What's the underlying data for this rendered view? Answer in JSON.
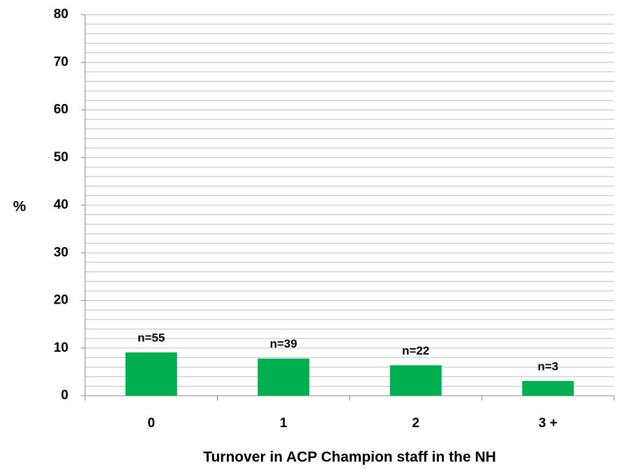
{
  "chart_data": {
    "type": "bar",
    "x_label": "Turnover in ACP Champion staff in the NH",
    "y_label": "%",
    "categories": [
      "0",
      "1",
      "2",
      "3 +"
    ],
    "values": [
      9.1,
      7.8,
      6.4,
      3.1
    ],
    "annotations": [
      "n=55",
      "n=39",
      "n=22",
      "n=3"
    ],
    "color": "#00b050",
    "ylim": [
      0,
      80
    ],
    "yticks": [
      0,
      10,
      20,
      30,
      40,
      50,
      60,
      70,
      80
    ],
    "minor_yticks": [
      2,
      4,
      6,
      8,
      12,
      14,
      16,
      18,
      22,
      24,
      26,
      28,
      32,
      34,
      36,
      38,
      42,
      44,
      46,
      48,
      52,
      54,
      56,
      58,
      62,
      64,
      66,
      68,
      72,
      74,
      76,
      78
    ],
    "grid": true
  }
}
